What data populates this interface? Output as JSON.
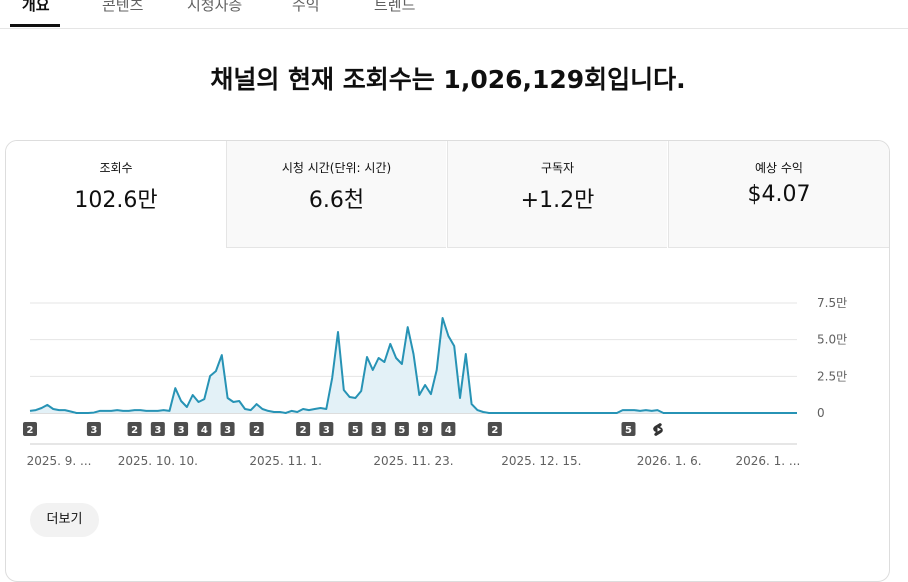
{
  "tabs": [
    "개요",
    "콘텐츠",
    "시청자층",
    "수익",
    "트렌드"
  ],
  "headline": "채널의 현재 조회수는 1,026,129회입니다.",
  "metrics": [
    {
      "label": "조회수",
      "value": "102.6만"
    },
    {
      "label": "시청 시간(단위: 시간)",
      "value": "6.6천"
    },
    {
      "label": "구독자",
      "value": "+1.2만"
    },
    {
      "label": "예상 수익",
      "value": "$4.07"
    }
  ],
  "chart_data": {
    "type": "line",
    "color": "#2793b5",
    "fill": "#e3f1f7",
    "grid": true,
    "ylim": [
      0,
      75000
    ],
    "yticks": [
      0,
      {
        "value": 25000,
        "label": "2.5만"
      },
      {
        "value": 50000,
        "label": "5.0만"
      },
      {
        "value": 75000,
        "label": "7.5만"
      }
    ],
    "categories": [
      null,
      null,
      null,
      null,
      null,
      "2025. 9. ...",
      null,
      null,
      null,
      null,
      null,
      null,
      null,
      null,
      null,
      null,
      null,
      null,
      null,
      null,
      null,
      null,
      "2025. 10. 10.",
      null,
      null,
      null,
      null,
      null,
      null,
      null,
      null,
      null,
      null,
      null,
      null,
      null,
      null,
      null,
      null,
      null,
      null,
      null,
      null,
      null,
      "2025. 11. 1.",
      null,
      null,
      null,
      null,
      null,
      null,
      null,
      null,
      null,
      null,
      null,
      null,
      null,
      null,
      null,
      null,
      null,
      null,
      null,
      null,
      null,
      "2025. 11. 23.",
      null,
      null,
      null,
      null,
      null,
      null,
      null,
      null,
      null,
      null,
      null,
      null,
      null,
      null,
      null,
      null,
      null,
      null,
      null,
      null,
      null,
      "2025. 12. 15.",
      null,
      null,
      null,
      null,
      null,
      null,
      null,
      null,
      null,
      null,
      null,
      null,
      null,
      null,
      null,
      null,
      null,
      null,
      null,
      null,
      null,
      "2026. 1. 6.",
      null,
      null,
      null,
      null,
      null,
      null,
      null,
      null,
      null,
      null,
      null,
      null,
      null,
      null,
      null,
      null,
      "2026. 1. ...",
      null,
      null,
      null,
      null,
      null
    ],
    "values": [
      1400,
      2000,
      3400,
      5500,
      2700,
      2000,
      2000,
      1000,
      0,
      0,
      0,
      300,
      1400,
      1400,
      1400,
      2000,
      1400,
      1400,
      2000,
      2000,
      1400,
      1400,
      1400,
      2000,
      1400,
      17000,
      8200,
      4100,
      12300,
      7500,
      9500,
      25200,
      28600,
      39500,
      10200,
      7500,
      8200,
      2700,
      2000,
      6100,
      2700,
      1400,
      700,
      700,
      0,
      1400,
      700,
      2700,
      2000,
      2700,
      3400,
      2700,
      23900,
      55200,
      15700,
      10900,
      10200,
      15000,
      38200,
      29300,
      37500,
      34800,
      47100,
      37500,
      33400,
      58600,
      40200,
      12300,
      19100,
      12900,
      29300,
      64800,
      52500,
      45700,
      10200,
      40200,
      6100,
      2000,
      700,
      0,
      0,
      0,
      0,
      0,
      0,
      0,
      0,
      0,
      0,
      0,
      0,
      0,
      0,
      0,
      0,
      0,
      0,
      0,
      0,
      0,
      0,
      0,
      2000,
      2000,
      2000,
      1400,
      2000,
      1400,
      2000,
      0,
      0,
      0,
      0,
      0,
      0,
      0,
      0,
      0,
      0,
      0,
      0,
      0,
      0,
      0,
      0,
      0,
      0,
      0,
      0,
      0,
      0,
      0,
      0
    ],
    "uploads": [
      2,
      null,
      null,
      null,
      null,
      null,
      null,
      null,
      null,
      null,
      null,
      3,
      null,
      null,
      null,
      null,
      null,
      null,
      2,
      null,
      null,
      null,
      3,
      null,
      null,
      null,
      3,
      null,
      null,
      null,
      4,
      null,
      null,
      null,
      3,
      null,
      null,
      null,
      null,
      2,
      null,
      null,
      null,
      null,
      null,
      null,
      null,
      2,
      null,
      null,
      null,
      3,
      null,
      null,
      null,
      null,
      5,
      null,
      null,
      null,
      3,
      null,
      null,
      null,
      5,
      null,
      null,
      null,
      9,
      null,
      null,
      null,
      4,
      null,
      null,
      null,
      null,
      null,
      null,
      null,
      2,
      null,
      null,
      null,
      null,
      null,
      null,
      null,
      null,
      null,
      null,
      null,
      null,
      null,
      null,
      null,
      null,
      null,
      null,
      null,
      null,
      null,
      null,
      5,
      null,
      null,
      null,
      null,
      null,
      null,
      null,
      null,
      null,
      null,
      null,
      null,
      null,
      null,
      null,
      null,
      null,
      null,
      null,
      null,
      null,
      null,
      null,
      null,
      null,
      null,
      null,
      null,
      null
    ]
  },
  "more_button": "더보기"
}
